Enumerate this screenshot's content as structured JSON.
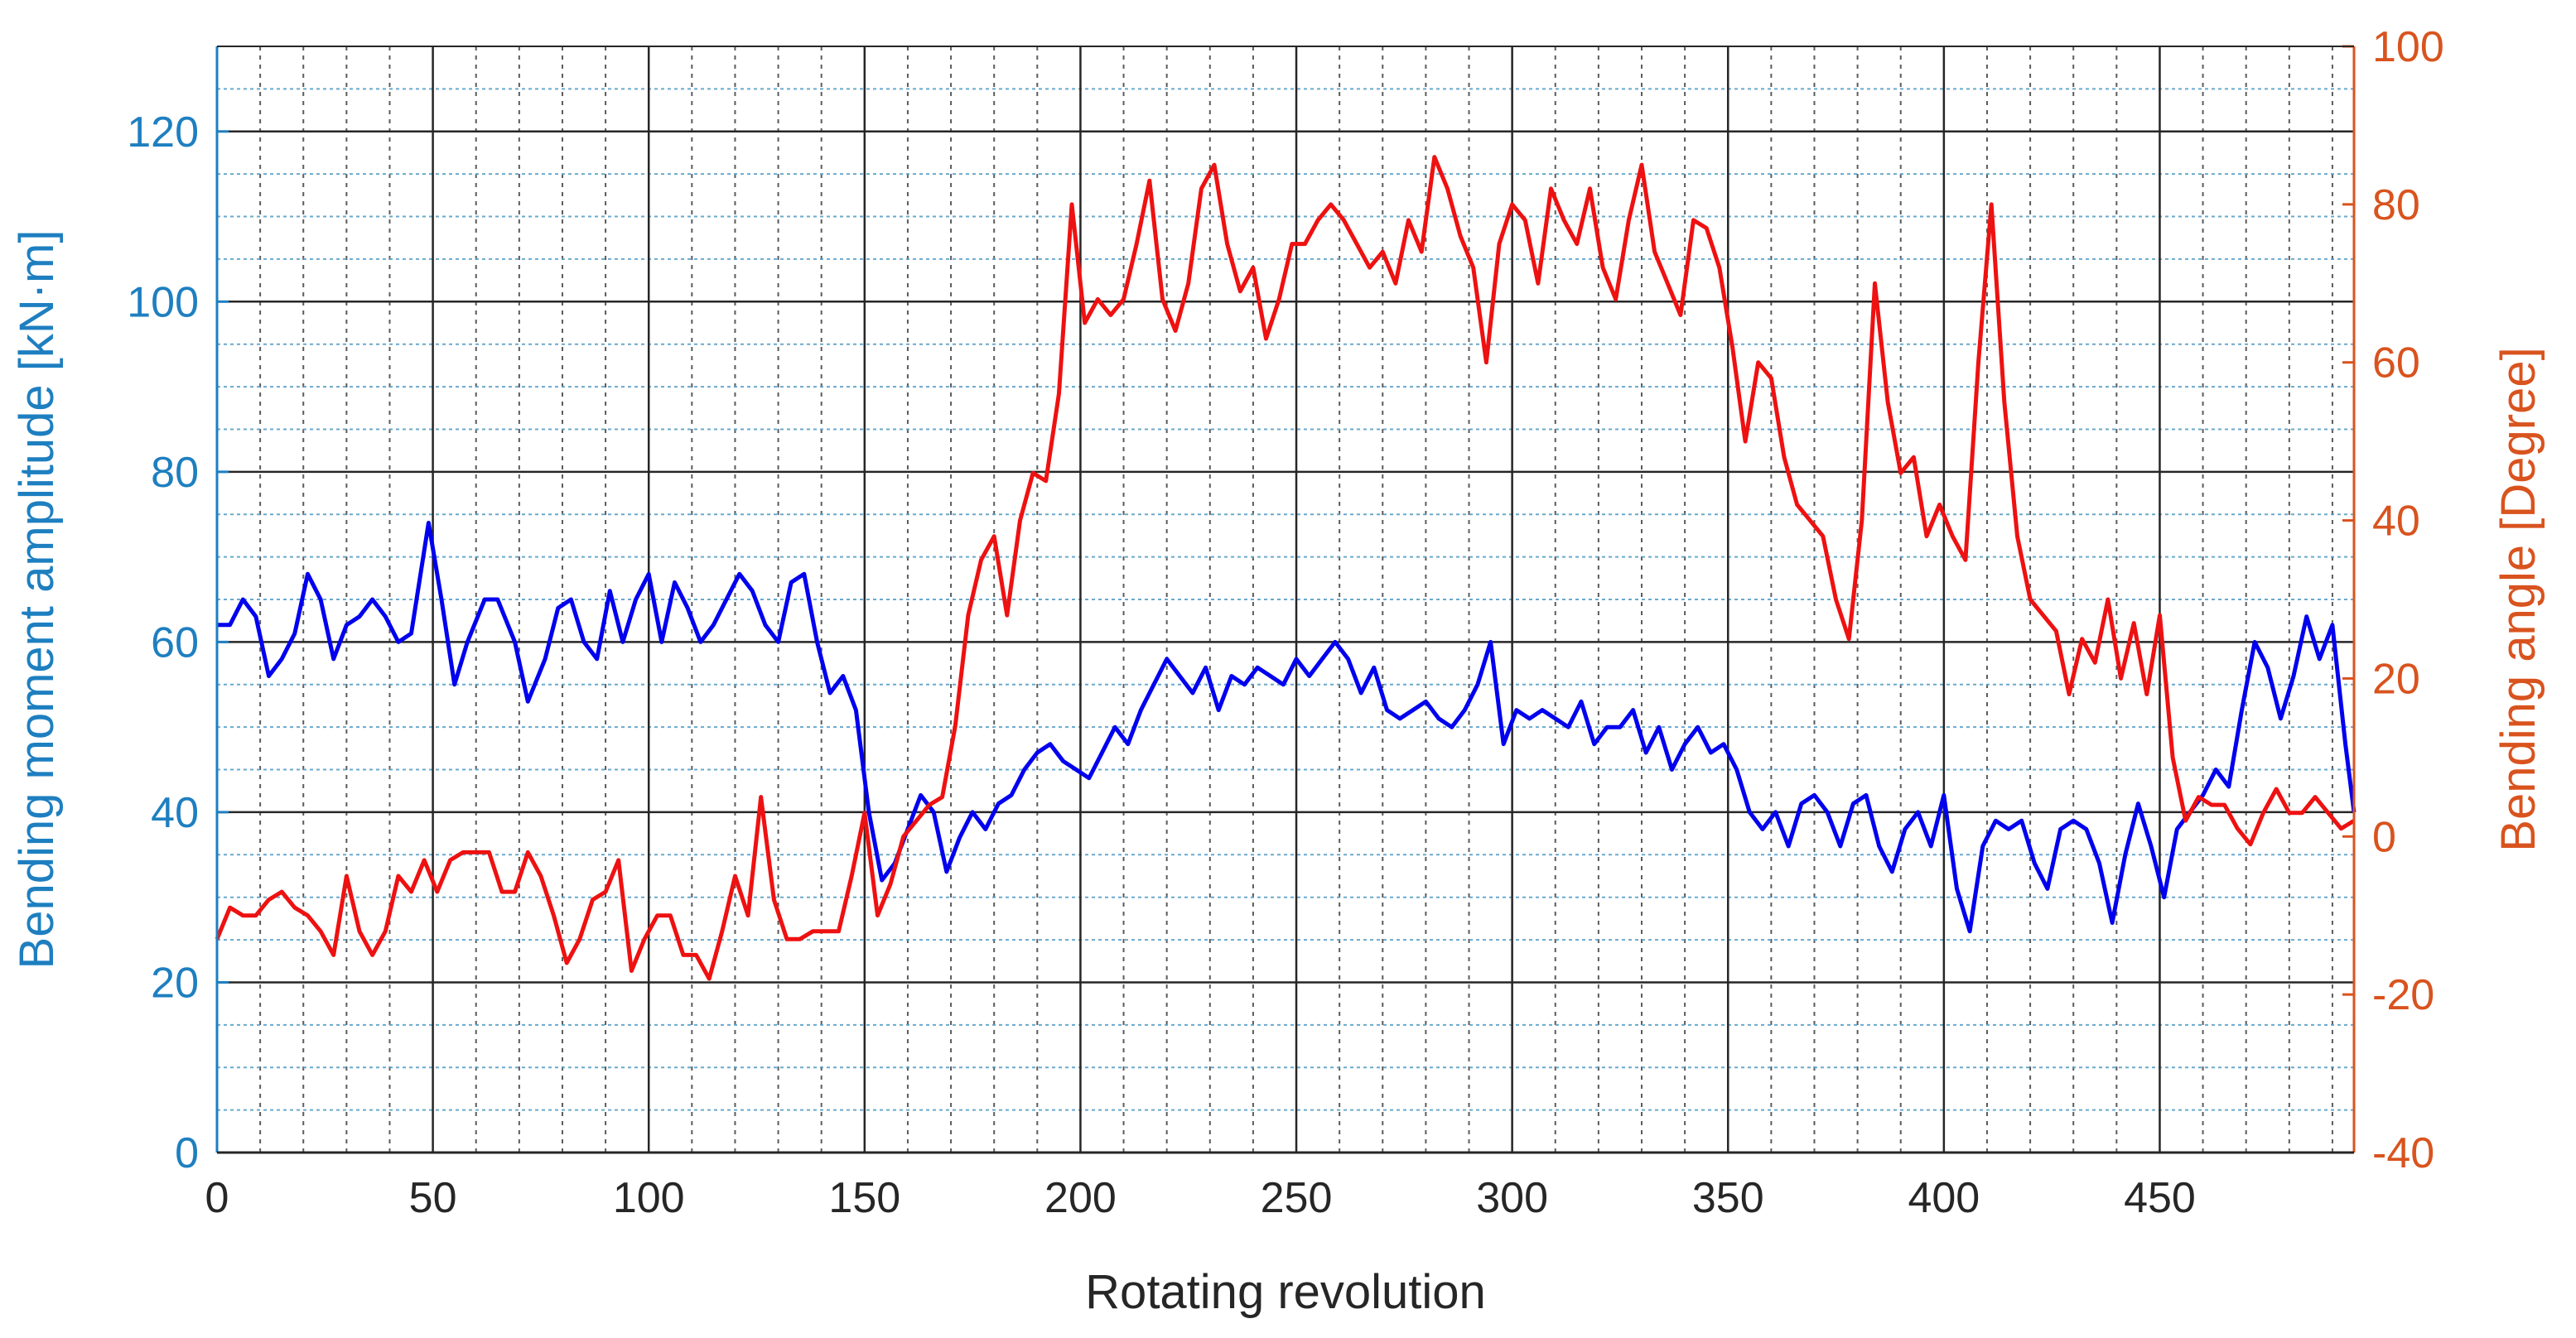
{
  "chart_data": {
    "type": "line",
    "title": "",
    "xlabel": "Rotating revolution",
    "ylabel_left": "Bending moment amplitude [kN·m]",
    "ylabel_right": "Bending angle [Degree]",
    "xlim": [
      0,
      495
    ],
    "ylim_left": [
      0,
      130
    ],
    "ylim_right": [
      -40,
      100
    ],
    "x_ticks": [
      0,
      50,
      100,
      150,
      200,
      250,
      300,
      350,
      400,
      450
    ],
    "x_tick_labels": [
      "0",
      "50",
      "100",
      "150",
      "200",
      "250",
      "300",
      "350",
      "400",
      "450"
    ],
    "y_left_ticks": [
      0,
      20,
      40,
      60,
      80,
      100,
      120
    ],
    "y_left_tick_labels": [
      "0",
      "20",
      "40",
      "60",
      "80",
      "100",
      "120"
    ],
    "y_right_ticks": [
      -40,
      -20,
      0,
      20,
      40,
      60,
      80,
      100
    ],
    "y_right_tick_labels": [
      "-40",
      "-20",
      "0",
      "20",
      "40",
      "60",
      "80",
      "100"
    ],
    "grid": true,
    "legend": "none",
    "colors": {
      "left_axis": "#1e7fc0",
      "right_axis": "#d9531e",
      "bending_moment_line": "#0000ee",
      "bending_angle_line": "#ee1111",
      "major_grid": "#262626",
      "minor_grid": "#5aa0c8"
    },
    "series": [
      {
        "axis": "left",
        "x": [
          0,
          3,
          6,
          9,
          12,
          15,
          18,
          21,
          24,
          27,
          30,
          33,
          36,
          39,
          42,
          45,
          49,
          52,
          55,
          58,
          62,
          65,
          69,
          72,
          76,
          79,
          82,
          85,
          88,
          91,
          94,
          97,
          100,
          103,
          106,
          109,
          112,
          115,
          118,
          121,
          124,
          127,
          130,
          133,
          136,
          139,
          142,
          145,
          148,
          151,
          154,
          157,
          160,
          163,
          166,
          169,
          172,
          175,
          178,
          181,
          184,
          187,
          190,
          193,
          196,
          199,
          202,
          205,
          208,
          211,
          214,
          217,
          220,
          223,
          226,
          229,
          232,
          235,
          238,
          241,
          244,
          247,
          250,
          253,
          256,
          259,
          262,
          265,
          268,
          271,
          274,
          277,
          280,
          283,
          286,
          289,
          292,
          295,
          298,
          301,
          304,
          307,
          310,
          313,
          316,
          319,
          322,
          325,
          328,
          331,
          334,
          337,
          340,
          343,
          346,
          349,
          352,
          355,
          358,
          361,
          364,
          367,
          370,
          373,
          376,
          379,
          382,
          385,
          388,
          391,
          394,
          397,
          400,
          403,
          406,
          409,
          412,
          415,
          418,
          421,
          424,
          427,
          430,
          433,
          436,
          439,
          442,
          445,
          448,
          451,
          454,
          457,
          460,
          463,
          466,
          469,
          472,
          475,
          478,
          481,
          484,
          487,
          490,
          493,
          495
        ],
        "values": [
          62,
          62,
          65,
          63,
          56,
          58,
          61,
          68,
          65,
          58,
          62,
          63,
          65,
          63,
          60,
          61,
          74,
          65,
          55,
          60,
          65,
          65,
          60,
          53,
          58,
          64,
          65,
          60,
          58,
          66,
          60,
          65,
          68,
          60,
          67,
          64,
          60,
          62,
          65,
          68,
          66,
          62,
          60,
          67,
          68,
          60,
          54,
          56,
          52,
          40,
          32,
          34,
          38,
          42,
          40,
          33,
          37,
          40,
          38,
          41,
          42,
          45,
          47,
          48,
          46,
          45,
          44,
          47,
          50,
          48,
          52,
          55,
          58,
          56,
          54,
          57,
          52,
          56,
          55,
          57,
          56,
          55,
          58,
          56,
          58,
          60,
          58,
          54,
          57,
          52,
          51,
          52,
          53,
          51,
          50,
          52,
          55,
          60,
          48,
          52,
          51,
          52,
          51,
          50,
          53,
          48,
          50,
          50,
          52,
          47,
          50,
          45,
          48,
          50,
          47,
          48,
          45,
          40,
          38,
          40,
          36,
          41,
          42,
          40,
          36,
          41,
          42,
          36,
          33,
          38,
          40,
          36,
          42,
          31,
          26,
          36,
          39,
          38,
          39,
          34,
          31,
          38,
          39,
          38,
          34,
          27,
          35,
          41,
          36,
          30,
          38,
          40,
          42,
          45,
          43,
          52,
          60,
          57,
          51,
          56,
          63,
          58,
          62,
          48,
          40
        ]
      },
      {
        "axis": "right",
        "x": [
          0,
          3,
          6,
          9,
          12,
          15,
          18,
          21,
          24,
          27,
          30,
          33,
          36,
          39,
          42,
          45,
          48,
          51,
          54,
          57,
          60,
          63,
          66,
          69,
          72,
          75,
          78,
          81,
          84,
          87,
          90,
          93,
          96,
          99,
          102,
          105,
          108,
          111,
          114,
          117,
          120,
          123,
          126,
          129,
          132,
          135,
          138,
          141,
          144,
          147,
          150,
          153,
          156,
          159,
          162,
          165,
          168,
          171,
          174,
          177,
          180,
          183,
          186,
          189,
          192,
          195,
          198,
          201,
          204,
          207,
          210,
          213,
          216,
          219,
          222,
          225,
          228,
          231,
          234,
          237,
          240,
          243,
          246,
          249,
          252,
          255,
          258,
          261,
          264,
          267,
          270,
          273,
          276,
          279,
          282,
          285,
          288,
          291,
          294,
          297,
          300,
          303,
          306,
          309,
          312,
          315,
          318,
          321,
          324,
          327,
          330,
          333,
          336,
          339,
          342,
          345,
          348,
          351,
          354,
          357,
          360,
          363,
          366,
          369,
          372,
          375,
          378,
          381,
          384,
          387,
          390,
          393,
          396,
          399,
          402,
          405,
          408,
          411,
          414,
          417,
          420,
          423,
          426,
          429,
          432,
          435,
          438,
          441,
          444,
          447,
          450,
          453,
          456,
          459,
          462,
          465,
          468,
          471,
          474,
          477,
          480,
          483,
          486,
          489,
          492,
          495
        ],
        "values": [
          -13,
          -9,
          -10,
          -10,
          -8,
          -7,
          -9,
          -10,
          -12,
          -15,
          -5,
          -12,
          -15,
          -12,
          -5,
          -7,
          -3,
          -7,
          -3,
          -2,
          -2,
          -2,
          -7,
          -7,
          -2,
          -5,
          -10,
          -16,
          -13,
          -8,
          -7,
          -3,
          -17,
          -13,
          -10,
          -10,
          -15,
          -15,
          -18,
          -12,
          -5,
          -10,
          5,
          -8,
          -13,
          -13,
          -12,
          -12,
          -12,
          -5,
          3,
          -10,
          -6,
          0,
          2,
          4,
          5,
          14,
          28,
          35,
          38,
          28,
          40,
          46,
          45,
          56,
          80,
          65,
          68,
          66,
          68,
          75,
          83,
          68,
          64,
          70,
          82,
          85,
          75,
          69,
          72,
          63,
          68,
          75,
          75,
          78,
          80,
          78,
          75,
          72,
          74,
          70,
          78,
          74,
          86,
          82,
          76,
          72,
          60,
          75,
          80,
          78,
          70,
          82,
          78,
          75,
          82,
          72,
          68,
          78,
          85,
          74,
          70,
          66,
          78,
          77,
          72,
          62,
          50,
          60,
          58,
          48,
          42,
          40,
          38,
          30,
          25,
          40,
          70,
          55,
          46,
          48,
          38,
          42,
          38,
          35,
          60,
          80,
          55,
          38,
          30,
          28,
          26,
          18,
          25,
          22,
          30,
          20,
          27,
          18,
          28,
          10,
          2,
          5,
          4,
          4,
          1,
          -1,
          3,
          6,
          3,
          3,
          5,
          3,
          1,
          2
        ]
      }
    ]
  }
}
